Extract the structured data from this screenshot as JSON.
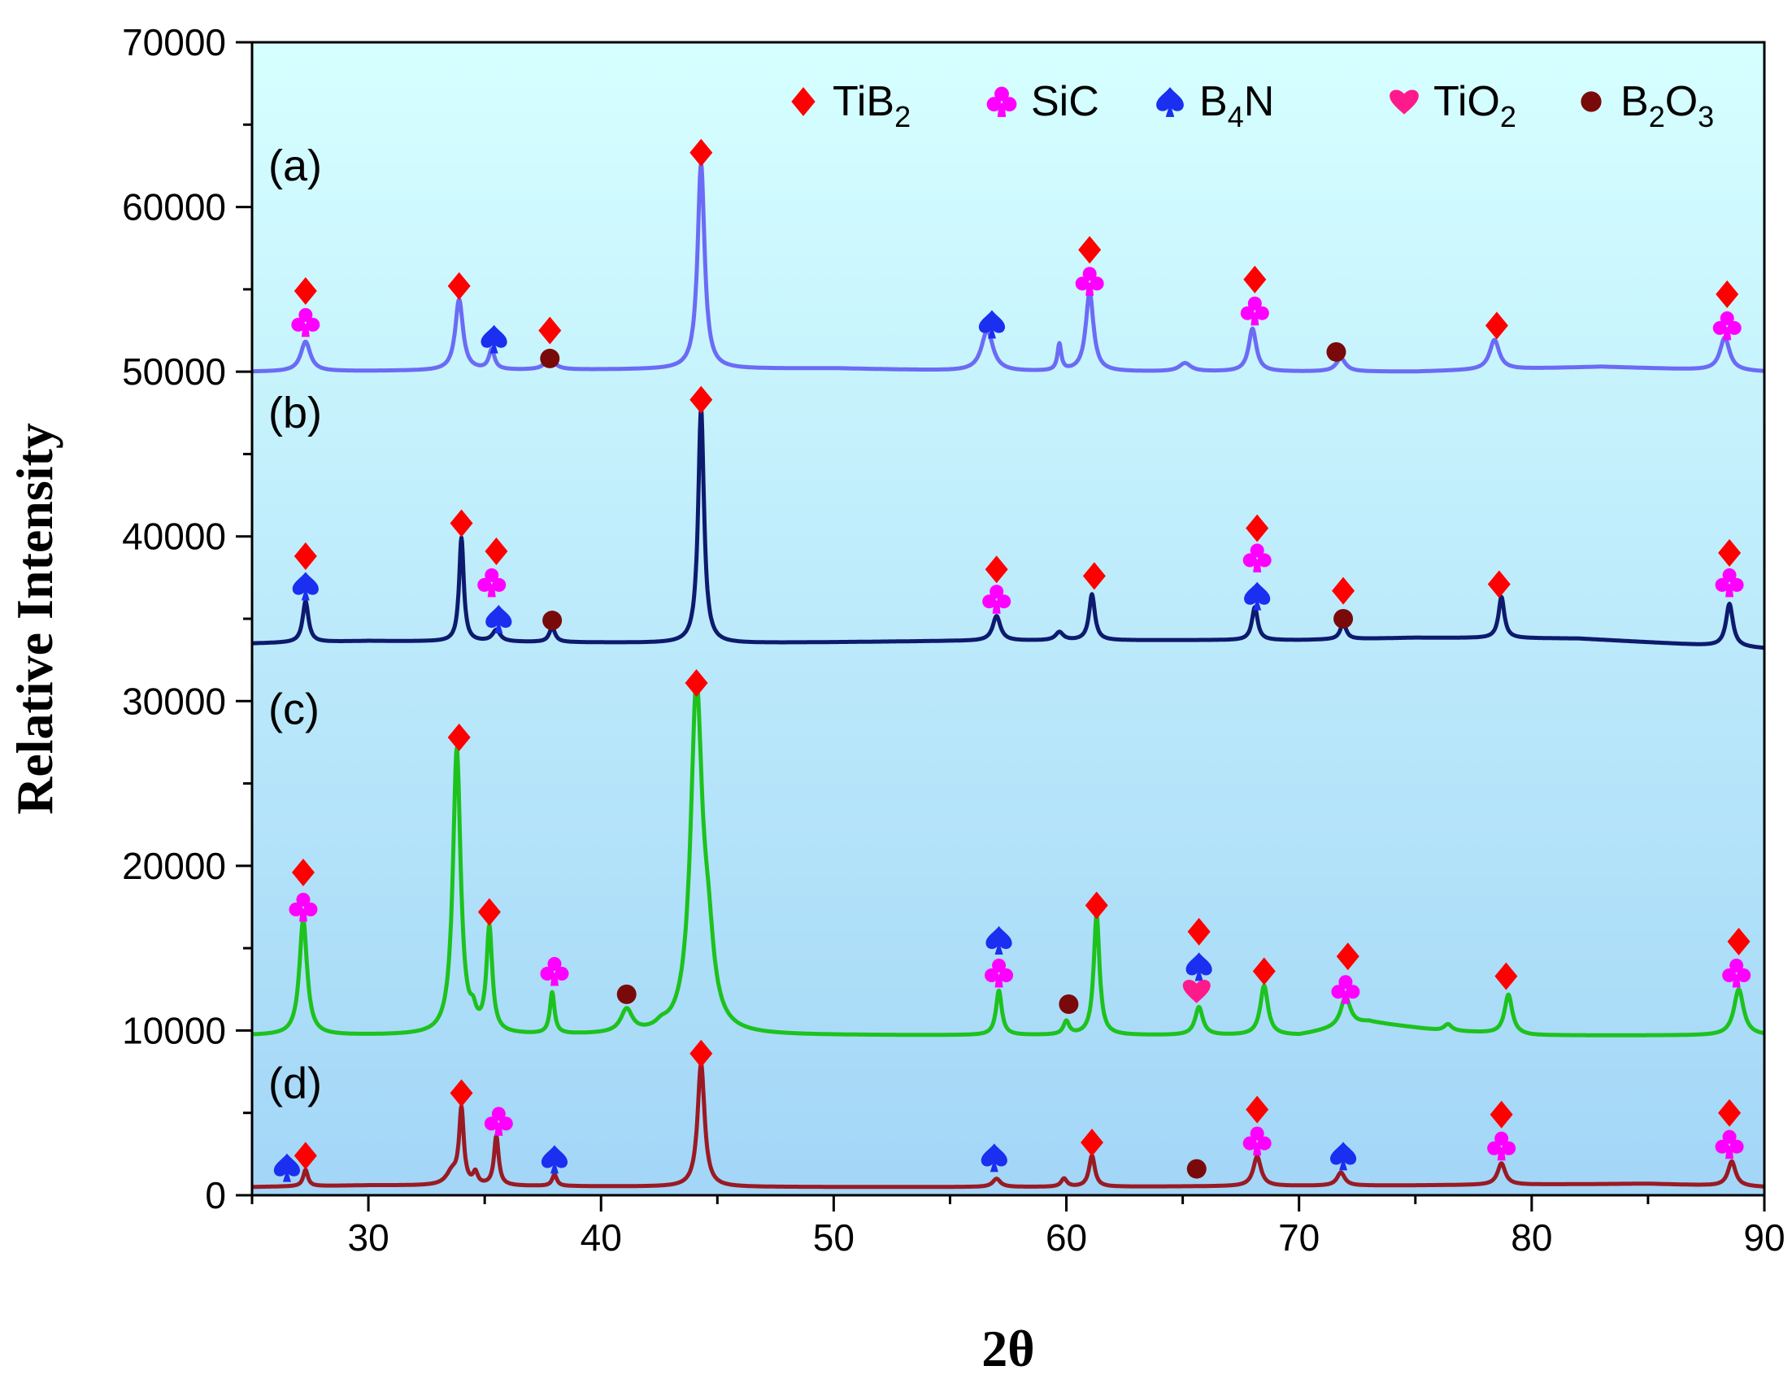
{
  "chart_data": {
    "type": "line",
    "title": "",
    "xlabel": "2θ",
    "ylabel": "Relative Intensity",
    "xlim": [
      25,
      90
    ],
    "ylim": [
      0,
      70000
    ],
    "x_ticks": [
      30,
      40,
      50,
      60,
      70,
      80,
      90
    ],
    "x_tick_labels": [
      "30",
      "40",
      "50",
      "60",
      "70",
      "80",
      "90"
    ],
    "y_ticks": [
      0,
      10000,
      20000,
      30000,
      40000,
      50000,
      60000,
      70000
    ],
    "y_tick_labels": [
      "0",
      "10000",
      "20000",
      "30000",
      "40000",
      "50000",
      "60000",
      "70000"
    ],
    "grid": false,
    "background": {
      "top": "#d6ffff",
      "bottom": "#a3d6f7"
    },
    "legend": {
      "placement": "top-right",
      "entries": [
        {
          "marker": "diamond",
          "color": "#ff0000",
          "base": "TiB",
          "sub": "2",
          "tail": ""
        },
        {
          "marker": "club",
          "color": "#ff00ff",
          "base": "SiC",
          "sub": "",
          "tail": ""
        },
        {
          "marker": "spade",
          "color": "#1a2ff0",
          "base": "B",
          "sub": "4",
          "tail": "N"
        },
        {
          "marker": "heart",
          "color": "#ff1a8c",
          "base": "TiO",
          "sub": "2",
          "tail": ""
        },
        {
          "marker": "circle",
          "color": "#7a0a0a",
          "base": "B",
          "sub": "2",
          "tail": "O3"
        }
      ]
    },
    "series": [
      {
        "name": "(a)",
        "label": "(a)",
        "color": "#6b6bf5",
        "baseline": 50000,
        "label_y": 62500,
        "baseline_wiggles": [
          [
            25,
            0
          ],
          [
            50,
            200
          ],
          [
            57,
            0
          ],
          [
            66,
            0
          ],
          [
            75,
            0
          ],
          [
            83,
            300
          ],
          [
            90,
            0
          ]
        ],
        "peaks": [
          [
            27.3,
            1800,
            0.25
          ],
          [
            33.9,
            4300,
            0.2
          ],
          [
            35.3,
            1200,
            0.15
          ],
          [
            37.8,
            700,
            0.25
          ],
          [
            44.3,
            12500,
            0.18
          ],
          [
            56.6,
            2500,
            0.3
          ],
          [
            59.7,
            1600,
            0.1
          ],
          [
            61.0,
            4800,
            0.2
          ],
          [
            65.1,
            500,
            0.3
          ],
          [
            68.0,
            2600,
            0.2
          ],
          [
            71.8,
            800,
            0.25
          ],
          [
            78.4,
            1800,
            0.25
          ],
          [
            88.3,
            2000,
            0.25
          ]
        ],
        "markers": [
          {
            "x": 27.3,
            "y": 54900,
            "type": "diamond"
          },
          {
            "x": 27.3,
            "y": 53000,
            "type": "club"
          },
          {
            "x": 33.9,
            "y": 55200,
            "type": "diamond"
          },
          {
            "x": 35.4,
            "y": 52000,
            "type": "spade"
          },
          {
            "x": 37.8,
            "y": 52500,
            "type": "diamond"
          },
          {
            "x": 37.8,
            "y": 50800,
            "type": "circle"
          },
          {
            "x": 44.3,
            "y": 63300,
            "type": "diamond"
          },
          {
            "x": 56.8,
            "y": 52900,
            "type": "spade"
          },
          {
            "x": 61.0,
            "y": 57400,
            "type": "diamond"
          },
          {
            "x": 61.0,
            "y": 55500,
            "type": "club"
          },
          {
            "x": 68.1,
            "y": 55600,
            "type": "diamond"
          },
          {
            "x": 68.1,
            "y": 53700,
            "type": "club"
          },
          {
            "x": 71.6,
            "y": 51200,
            "type": "circle"
          },
          {
            "x": 78.5,
            "y": 52800,
            "type": "diamond"
          },
          {
            "x": 88.4,
            "y": 54700,
            "type": "diamond"
          },
          {
            "x": 88.4,
            "y": 52800,
            "type": "club"
          }
        ]
      },
      {
        "name": "(b)",
        "label": "(b)",
        "color": "#0d1a6e",
        "baseline": 33500,
        "label_y": 47500,
        "baseline_wiggles": [
          [
            25,
            0
          ],
          [
            30,
            150
          ],
          [
            45,
            0
          ],
          [
            55,
            150
          ],
          [
            65,
            200
          ],
          [
            70,
            200
          ],
          [
            75,
            350
          ],
          [
            82,
            300
          ],
          [
            90,
            -300
          ]
        ],
        "peaks": [
          [
            27.3,
            2500,
            0.15
          ],
          [
            34.0,
            6300,
            0.12
          ],
          [
            35.5,
            700,
            0.2
          ],
          [
            37.9,
            900,
            0.15
          ],
          [
            44.3,
            14300,
            0.15
          ],
          [
            57.0,
            1500,
            0.2
          ],
          [
            59.7,
            500,
            0.2
          ],
          [
            61.1,
            2800,
            0.15
          ],
          [
            68.1,
            2000,
            0.15
          ],
          [
            71.9,
            1000,
            0.15
          ],
          [
            78.7,
            2500,
            0.15
          ],
          [
            88.5,
            2600,
            0.18
          ]
        ],
        "markers": [
          {
            "x": 27.3,
            "y": 38800,
            "type": "diamond"
          },
          {
            "x": 27.3,
            "y": 37000,
            "type": "spade"
          },
          {
            "x": 34.0,
            "y": 40800,
            "type": "diamond"
          },
          {
            "x": 35.5,
            "y": 39100,
            "type": "diamond"
          },
          {
            "x": 35.3,
            "y": 37200,
            "type": "club"
          },
          {
            "x": 35.6,
            "y": 35000,
            "type": "spade"
          },
          {
            "x": 37.9,
            "y": 34900,
            "type": "circle"
          },
          {
            "x": 44.3,
            "y": 48300,
            "type": "diamond"
          },
          {
            "x": 57.0,
            "y": 38000,
            "type": "diamond"
          },
          {
            "x": 57.0,
            "y": 36200,
            "type": "club"
          },
          {
            "x": 61.2,
            "y": 37600,
            "type": "diamond"
          },
          {
            "x": 68.2,
            "y": 40500,
            "type": "diamond"
          },
          {
            "x": 68.2,
            "y": 38700,
            "type": "club"
          },
          {
            "x": 68.2,
            "y": 36400,
            "type": "spade"
          },
          {
            "x": 71.9,
            "y": 36700,
            "type": "diamond"
          },
          {
            "x": 71.9,
            "y": 35000,
            "type": "circle"
          },
          {
            "x": 78.6,
            "y": 37100,
            "type": "diamond"
          },
          {
            "x": 88.5,
            "y": 39000,
            "type": "diamond"
          },
          {
            "x": 88.5,
            "y": 37200,
            "type": "club"
          }
        ]
      },
      {
        "name": "(c)",
        "label": "(c)",
        "color": "#1dc21d",
        "baseline": 9700,
        "label_y": 29500,
        "baseline_wiggles": [
          [
            25,
            0
          ],
          [
            40,
            0
          ],
          [
            45,
            0
          ],
          [
            55,
            0
          ],
          [
            65,
            0
          ],
          [
            70,
            0
          ],
          [
            73,
            800
          ],
          [
            76,
            300
          ],
          [
            80,
            0
          ],
          [
            90,
            0
          ]
        ],
        "peaks": [
          [
            27.2,
            7000,
            0.2
          ],
          [
            33.8,
            17300,
            0.2
          ],
          [
            34.5,
            800,
            0.15
          ],
          [
            35.2,
            6300,
            0.15
          ],
          [
            37.9,
            2500,
            0.12
          ],
          [
            41.1,
            1400,
            0.3
          ],
          [
            42.6,
            300,
            0.3
          ],
          [
            44.1,
            20500,
            0.3
          ],
          [
            44.6,
            4000,
            0.3
          ],
          [
            57.1,
            2700,
            0.15
          ],
          [
            60.0,
            800,
            0.15
          ],
          [
            61.3,
            7300,
            0.15
          ],
          [
            65.7,
            1700,
            0.2
          ],
          [
            68.5,
            3000,
            0.2
          ],
          [
            72.0,
            1800,
            0.25
          ],
          [
            76.4,
            400,
            0.2
          ],
          [
            79.0,
            2400,
            0.2
          ],
          [
            88.9,
            2800,
            0.25
          ]
        ],
        "markers": [
          {
            "x": 27.2,
            "y": 19600,
            "type": "diamond"
          },
          {
            "x": 27.2,
            "y": 17500,
            "type": "club"
          },
          {
            "x": 33.9,
            "y": 27800,
            "type": "diamond"
          },
          {
            "x": 35.2,
            "y": 17200,
            "type": "diamond"
          },
          {
            "x": 38.0,
            "y": 13600,
            "type": "club"
          },
          {
            "x": 41.1,
            "y": 12200,
            "type": "circle"
          },
          {
            "x": 44.1,
            "y": 31100,
            "type": "diamond"
          },
          {
            "x": 57.1,
            "y": 15500,
            "type": "spade"
          },
          {
            "x": 57.1,
            "y": 13500,
            "type": "club"
          },
          {
            "x": 60.1,
            "y": 11600,
            "type": "circle"
          },
          {
            "x": 61.3,
            "y": 17600,
            "type": "diamond"
          },
          {
            "x": 65.7,
            "y": 16000,
            "type": "diamond"
          },
          {
            "x": 65.7,
            "y": 13900,
            "type": "spade"
          },
          {
            "x": 65.6,
            "y": 12400,
            "type": "heart"
          },
          {
            "x": 68.5,
            "y": 13600,
            "type": "diamond"
          },
          {
            "x": 72.1,
            "y": 14500,
            "type": "diamond"
          },
          {
            "x": 72.0,
            "y": 12500,
            "type": "club"
          },
          {
            "x": 78.9,
            "y": 13300,
            "type": "diamond"
          },
          {
            "x": 88.9,
            "y": 15400,
            "type": "diamond"
          },
          {
            "x": 88.8,
            "y": 13500,
            "type": "club"
          }
        ]
      },
      {
        "name": "(d)",
        "label": "(d)",
        "color": "#9a1a24",
        "baseline": 500,
        "label_y": 6800,
        "baseline_wiggles": [
          [
            25,
            0
          ],
          [
            30,
            100
          ],
          [
            45,
            0
          ],
          [
            60,
            0
          ],
          [
            75,
            100
          ],
          [
            85,
            200
          ],
          [
            90,
            0
          ]
        ],
        "peaks": [
          [
            27.3,
            1000,
            0.12
          ],
          [
            33.6,
            800,
            0.3
          ],
          [
            34.0,
            4500,
            0.12
          ],
          [
            34.6,
            700,
            0.12
          ],
          [
            35.5,
            3000,
            0.12
          ],
          [
            38.0,
            700,
            0.12
          ],
          [
            44.3,
            7500,
            0.18
          ],
          [
            57.0,
            500,
            0.2
          ],
          [
            59.9,
            500,
            0.15
          ],
          [
            61.1,
            1900,
            0.15
          ],
          [
            68.2,
            1800,
            0.2
          ],
          [
            71.8,
            800,
            0.2
          ],
          [
            78.7,
            1300,
            0.2
          ],
          [
            88.6,
            1500,
            0.2
          ]
        ],
        "markers": [
          {
            "x": 26.5,
            "y": 1700,
            "type": "spade"
          },
          {
            "x": 27.3,
            "y": 2400,
            "type": "diamond"
          },
          {
            "x": 34.0,
            "y": 6200,
            "type": "diamond"
          },
          {
            "x": 35.6,
            "y": 4500,
            "type": "club"
          },
          {
            "x": 38.0,
            "y": 2200,
            "type": "spade"
          },
          {
            "x": 44.3,
            "y": 8600,
            "type": "diamond"
          },
          {
            "x": 56.9,
            "y": 2300,
            "type": "spade"
          },
          {
            "x": 61.1,
            "y": 3200,
            "type": "diamond"
          },
          {
            "x": 65.6,
            "y": 1600,
            "type": "circle"
          },
          {
            "x": 68.2,
            "y": 5200,
            "type": "diamond"
          },
          {
            "x": 68.2,
            "y": 3300,
            "type": "club"
          },
          {
            "x": 71.9,
            "y": 2400,
            "type": "spade"
          },
          {
            "x": 78.7,
            "y": 4900,
            "type": "diamond"
          },
          {
            "x": 78.7,
            "y": 3000,
            "type": "club"
          },
          {
            "x": 88.5,
            "y": 5000,
            "type": "diamond"
          },
          {
            "x": 88.5,
            "y": 3100,
            "type": "club"
          }
        ]
      }
    ]
  }
}
